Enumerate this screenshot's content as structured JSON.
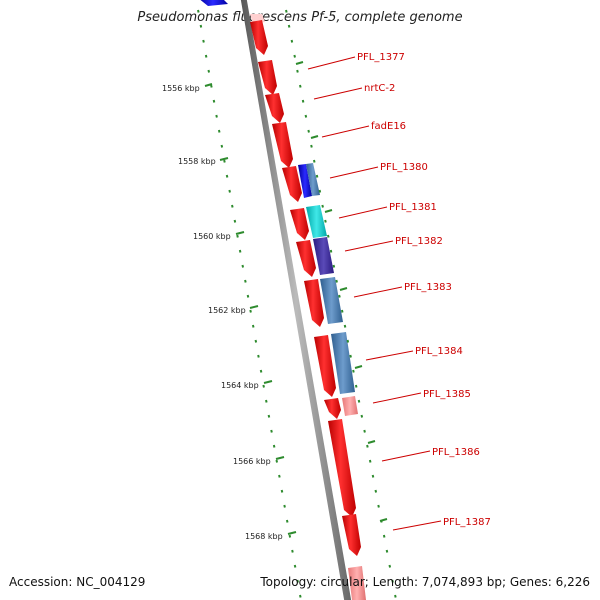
{
  "title": "Pseudomonas fluorescens Pf-5, complete genome",
  "footer": {
    "accession": "Accession: NC_004129",
    "summary": "Topology: circular; Length: 7,074,893 bp; Genes: 6,226"
  },
  "colors": {
    "forward": "#ff0000",
    "backbone": "#808080",
    "tick": "#2e8b2e",
    "label": "#cc0000"
  },
  "kbp_ticks": [
    "1556 kbp",
    "1558 kbp",
    "1560 kbp",
    "1562 kbp",
    "1564 kbp",
    "1566 kbp",
    "1568 kbp"
  ],
  "gene_labels": [
    "PFL_1377",
    "nrtC-2",
    "fadE16",
    "PFL_1380",
    "PFL_1381",
    "PFL_1382",
    "PFL_1383",
    "PFL_1384",
    "PFL_1385",
    "PFL_1386",
    "PFL_1387"
  ]
}
